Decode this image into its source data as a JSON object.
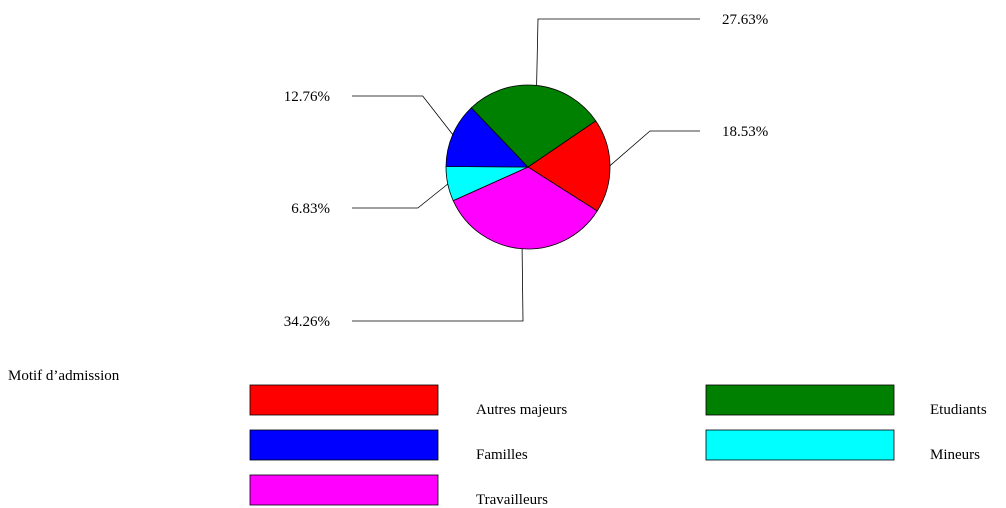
{
  "chart_data": {
    "type": "pie",
    "legend_title": "Motif d’admission",
    "legend_position": "bottom",
    "slices": [
      {
        "label": "Autres majeurs",
        "value": 18.53,
        "value_label": "18.53%",
        "color": "#ff0000"
      },
      {
        "label": "Travailleurs",
        "value": 34.26,
        "value_label": "34.26%",
        "color": "#ff00ff"
      },
      {
        "label": "Mineurs",
        "value": 6.83,
        "value_label": "6.83%",
        "color": "#00ffff"
      },
      {
        "label": "Familles",
        "value": 12.76,
        "value_label": "12.76%",
        "color": "#0000ff"
      },
      {
        "label": "Etudiants",
        "value": 27.63,
        "value_label": "27.63%",
        "color": "#008000"
      }
    ],
    "legend_order": [
      "Autres majeurs",
      "Etudiants",
      "Familles",
      "Mineurs",
      "Travailleurs"
    ]
  }
}
